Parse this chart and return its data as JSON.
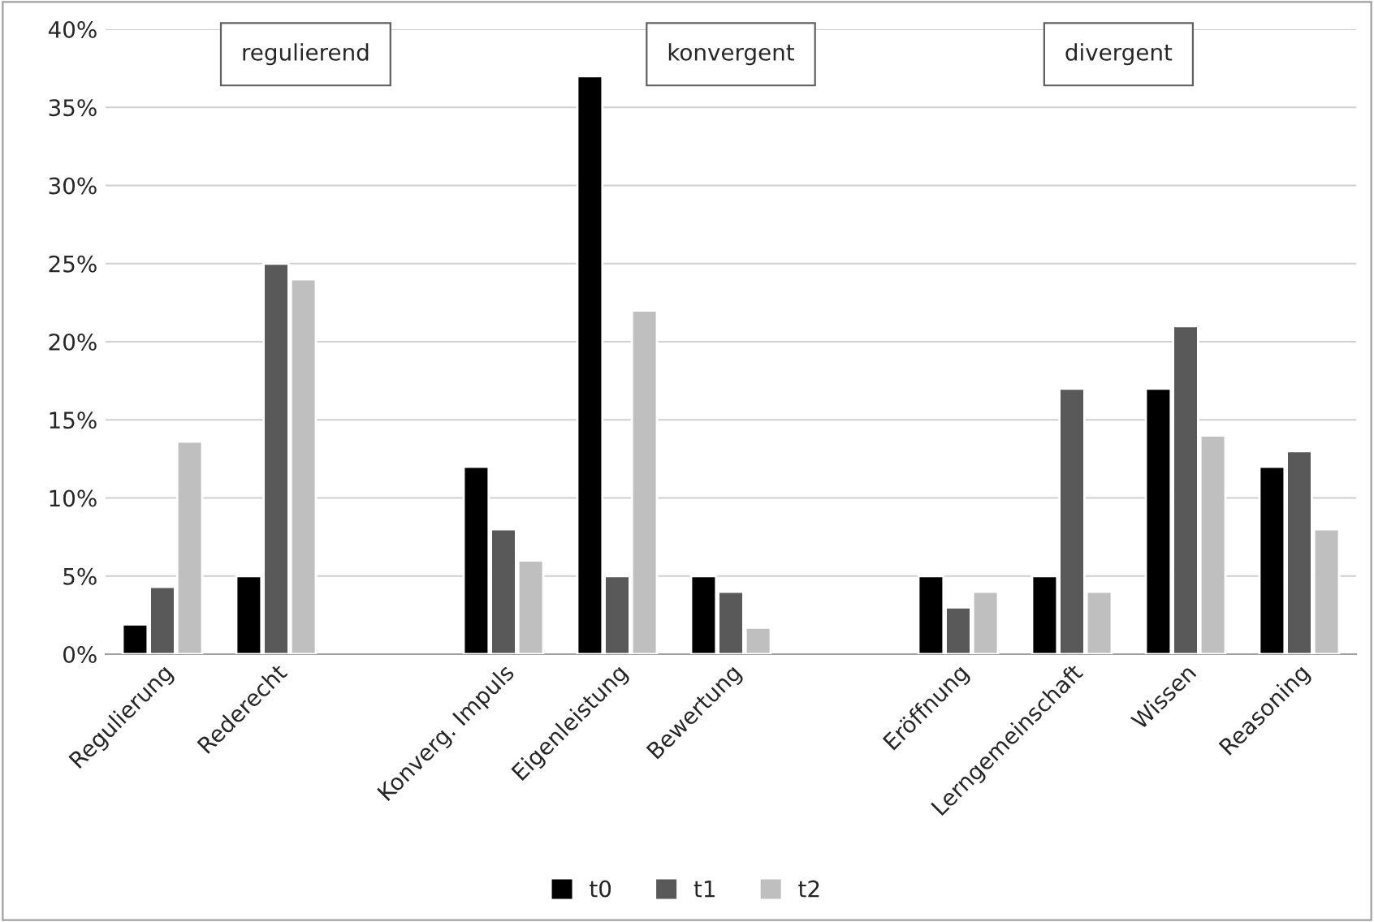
{
  "chart_data": {
    "type": "bar",
    "categories": [
      "Regulierung",
      "Rederecht",
      null,
      "Konverg. Impuls",
      "Eigenleistung",
      "Bewertung",
      null,
      "Eröffnung",
      "Lerngemeinschaft",
      "Wissen",
      "Reasoning"
    ],
    "series": [
      {
        "name": "t0",
        "color": "#000000",
        "values": [
          1.9,
          5,
          null,
          12,
          37,
          5,
          null,
          5,
          5,
          17,
          12
        ]
      },
      {
        "name": "t1",
        "color": "#595959",
        "values": [
          4.3,
          25,
          null,
          8,
          5,
          4,
          null,
          3,
          17,
          21,
          13
        ]
      },
      {
        "name": "t2",
        "color": "#bfbfbf",
        "values": [
          13.6,
          24,
          null,
          6,
          22,
          1.7,
          null,
          4,
          4,
          14,
          8
        ]
      }
    ],
    "ylim": [
      0,
      40
    ],
    "yticks": [
      {
        "value": 0,
        "label": "0%"
      },
      {
        "value": 5,
        "label": "5%"
      },
      {
        "value": 10,
        "label": "10%"
      },
      {
        "value": 15,
        "label": "15%"
      },
      {
        "value": 20,
        "label": "20%"
      },
      {
        "value": 25,
        "label": "25%"
      },
      {
        "value": 30,
        "label": "30%"
      },
      {
        "value": 35,
        "label": "35%"
      },
      {
        "value": 40,
        "label": "40%"
      }
    ],
    "annotations": [
      "regulierend",
      "konvergent",
      "divergent"
    ],
    "grid": "y",
    "legend": "bottom"
  }
}
